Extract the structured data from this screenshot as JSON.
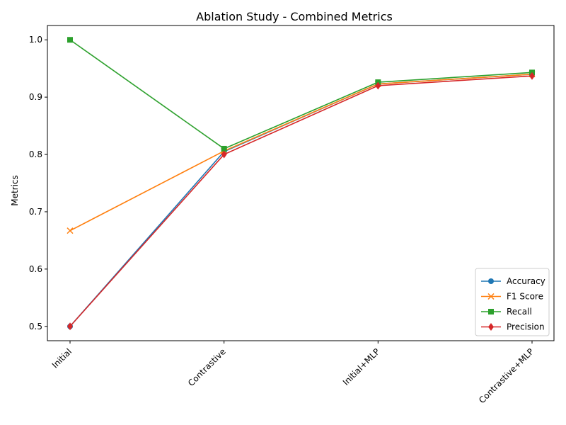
{
  "chart_data": {
    "type": "line",
    "title": "Ablation Study - Combined Metrics",
    "xlabel": "",
    "ylabel": "Metrics",
    "categories": [
      "Initial",
      "Contrastive",
      "Initial+MLP",
      "Contrastive+MLP"
    ],
    "ylim": [
      0.475,
      1.025
    ],
    "yticks": [
      0.5,
      0.6,
      0.7,
      0.8,
      0.9,
      1.0
    ],
    "ytick_labels": [
      "0.5",
      "0.6",
      "0.7",
      "0.8",
      "0.9",
      "1.0"
    ],
    "grid": false,
    "legend_position": "lower-right",
    "series": [
      {
        "name": "Accuracy",
        "color": "#1f77b4",
        "marker": "circle",
        "values": [
          0.5,
          0.805,
          0.923,
          0.94
        ]
      },
      {
        "name": "F1 Score",
        "color": "#ff7f0e",
        "marker": "x",
        "values": [
          0.667,
          0.806,
          0.923,
          0.94
        ]
      },
      {
        "name": "Recall",
        "color": "#2ca02c",
        "marker": "square",
        "values": [
          1.0,
          0.81,
          0.926,
          0.943
        ]
      },
      {
        "name": "Precision",
        "color": "#d62728",
        "marker": "diamond",
        "values": [
          0.5,
          0.8,
          0.92,
          0.937
        ]
      }
    ]
  }
}
